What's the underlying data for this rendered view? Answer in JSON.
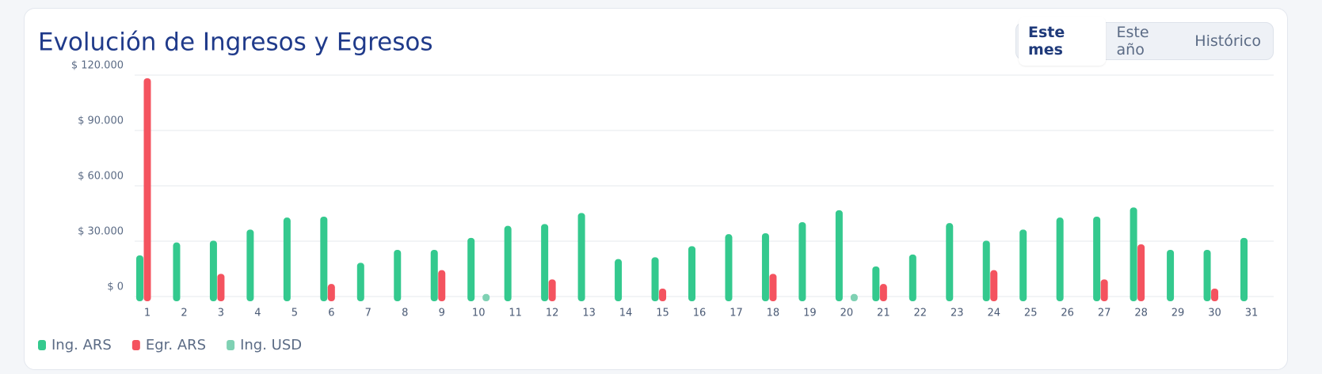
{
  "tabs": [
    "Este mes",
    "Este año",
    "Histórico"
  ],
  "chart_data": {
    "type": "bar",
    "title": "Evolución de Ingresos y Egresos",
    "categories": [
      "1",
      "2",
      "3",
      "4",
      "5",
      "6",
      "7",
      "8",
      "9",
      "10",
      "11",
      "12",
      "13",
      "14",
      "15",
      "16",
      "17",
      "18",
      "19",
      "20",
      "21",
      "22",
      "23",
      "24",
      "25",
      "26",
      "27",
      "28",
      "29",
      "30",
      "31"
    ],
    "series": [
      {
        "name": "Ing. ARS",
        "color": "#34c98e",
        "values": [
          21000,
          28000,
          29000,
          35000,
          41500,
          42000,
          17000,
          24000,
          24000,
          30500,
          37000,
          38000,
          44000,
          19000,
          20000,
          26000,
          32500,
          33000,
          39000,
          45500,
          15000,
          21500,
          38500,
          29000,
          35000,
          41500,
          42000,
          47000,
          24000,
          24000,
          30500
        ]
      },
      {
        "name": "Egr. ARS",
        "color": "#f4535f",
        "values": [
          117000,
          null,
          11000,
          null,
          null,
          5500,
          null,
          null,
          13000,
          null,
          null,
          8000,
          null,
          null,
          3000,
          null,
          null,
          11000,
          null,
          null,
          5500,
          null,
          null,
          13000,
          null,
          null,
          8000,
          27000,
          null,
          3000,
          null
        ]
      },
      {
        "name": "Ing. USD",
        "color": "#7fd1b3",
        "values": [
          null,
          null,
          null,
          null,
          null,
          null,
          null,
          null,
          null,
          100,
          null,
          null,
          null,
          null,
          null,
          null,
          null,
          null,
          null,
          100,
          null,
          null,
          null,
          null,
          null,
          null,
          null,
          null,
          null,
          null,
          null
        ]
      }
    ],
    "ylim": [
      0,
      120000
    ],
    "yticks": [
      {
        "value": 0,
        "label": "$ 0"
      },
      {
        "value": 30000,
        "label": "$ 30.000"
      },
      {
        "value": 60000,
        "label": "$ 60.000"
      },
      {
        "value": 90000,
        "label": "$ 90.000"
      },
      {
        "value": 120000,
        "label": "$ 120.000"
      }
    ],
    "grid": true,
    "legend": "bottom-left"
  }
}
